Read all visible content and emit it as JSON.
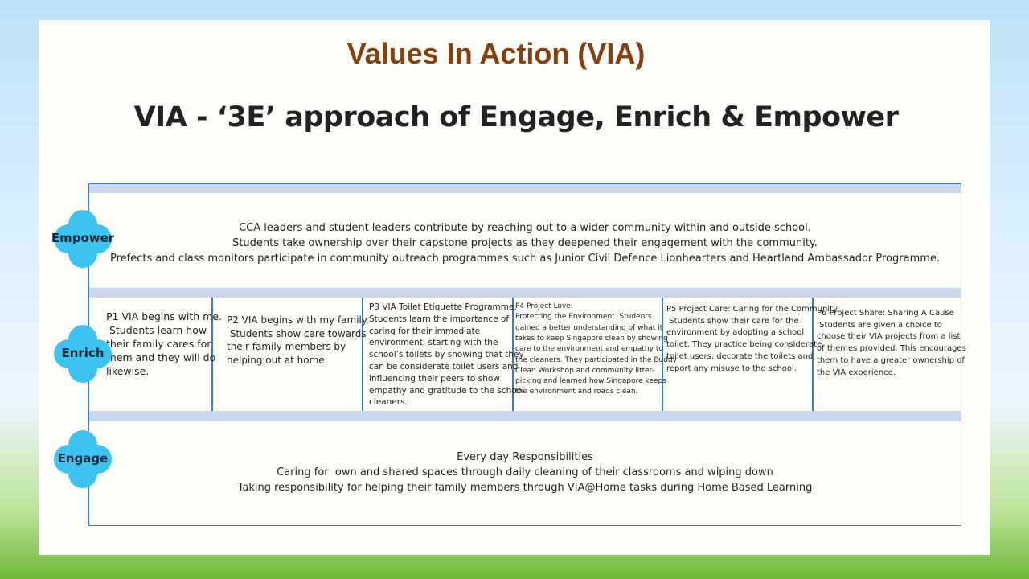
{
  "header": {
    "title": "Values In Action (VIA)",
    "subtitle": "VIA - ‘3E’ approach of Engage, Enrich & Empower"
  },
  "rows": {
    "empower": {
      "label": "Empower",
      "lines": [
        "CCA leaders and student leaders contribute by reaching out to a wider community within and outside school.",
        "Students take ownership over their capstone projects as they deepened their engagement with the community.",
        "Prefects and class monitors participate in community outreach programmes such as Junior Civil Defence Lionhearters and Heartland Ambassador Programme."
      ]
    },
    "enrich": {
      "label": "Enrich",
      "cells": [
        {
          "lines": [
            "P1 VIA begins with me.",
            " Students learn how",
            "their family cares for",
            "them and they will do",
            "likewise."
          ]
        },
        {
          "lines": [
            "P2 VIA begins with my family.",
            " Students show care towards",
            "their family members by",
            "helping out at home."
          ]
        },
        {
          "lines": [
            "P3 VIA Toilet Etiquette Programme.",
            "Students learn the importance of",
            "caring for their immediate",
            "environment, starting with the",
            "school’s toilets by showing that they",
            "can be considerate toilet users and",
            "influencing their peers to show",
            "empathy and gratitude to the school",
            "cleaners."
          ]
        },
        {
          "lines": [
            "P4 Project Love:",
            "Protecting the Environment. Students",
            "gained a better understanding of what it",
            "takes to keep Singapore clean by showing",
            "care to the environment and empathy to",
            "the cleaners. They participated in the Buddy",
            "Clean Workshop and community litter-",
            "picking and learned how Singapore keeps",
            "the environment and roads clean."
          ]
        },
        {
          "lines": [
            "P5 Project Care: Caring for the Community",
            " Students show their care for the",
            "environment by adopting a school",
            "toilet. They practice being considerate",
            "toilet users, decorate the toilets and",
            "report any misuse to the school."
          ]
        },
        {
          "lines": [
            "P6 Project Share: Sharing A Cause",
            " Students are given a choice to",
            "choose their VIA projects from a list",
            "of themes provided. This encourages",
            "them to have a greater ownership of",
            "the VIA experience."
          ]
        }
      ]
    },
    "engage": {
      "label": "Engage",
      "lines": [
        "Every day Responsibilities",
        "Caring for  own and shared spaces through daily cleaning of their classrooms and wiping down",
        "Taking responsibility for helping their family members through VIA@Home tasks during Home Based Learning"
      ]
    }
  }
}
